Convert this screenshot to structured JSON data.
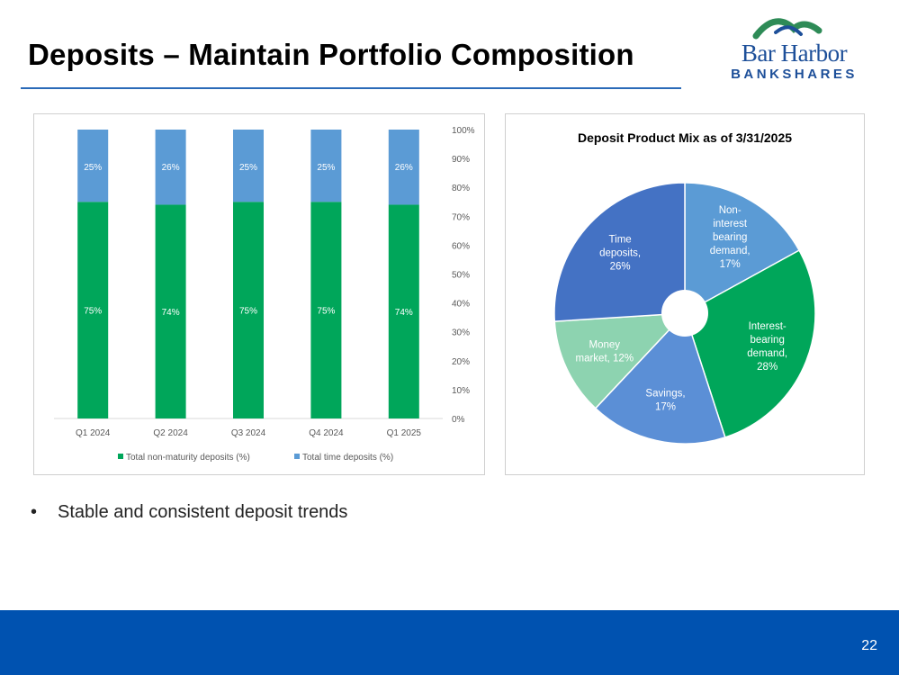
{
  "slide": {
    "title": "Deposits – Maintain Portfolio Composition",
    "bullet": "Stable and consistent deposit trends",
    "page_number": "22"
  },
  "logo": {
    "name": "Bar Harbor",
    "sub": "BANKSHARES"
  },
  "colors": {
    "title_rule": "#2a6ab8",
    "footer": "#0052b0",
    "green": "#00a65a",
    "lightblue": "#5b9bd5",
    "darkblue": "#4472c4",
    "mint": "#8dd3b0",
    "midblue": "#5b8fd6"
  },
  "chart_data": [
    {
      "type": "bar",
      "stacked": true,
      "categories": [
        "Q1 2024",
        "Q2 2024",
        "Q3 2024",
        "Q4 2024",
        "Q1 2025"
      ],
      "series": [
        {
          "name": "Total non-maturity deposits (%)",
          "values": [
            75,
            74,
            75,
            75,
            74
          ],
          "labels": [
            "75%",
            "74%",
            "75%",
            "75%",
            "74%"
          ],
          "color": "#00a65a"
        },
        {
          "name": "Total time deposits (%)",
          "values": [
            25,
            26,
            25,
            25,
            26
          ],
          "labels": [
            "25%",
            "26%",
            "25%",
            "25%",
            "26%"
          ],
          "color": "#5b9bd5"
        }
      ],
      "ylim": [
        0,
        100
      ],
      "yticks": [
        "0%",
        "10%",
        "20%",
        "30%",
        "40%",
        "50%",
        "60%",
        "70%",
        "80%",
        "90%",
        "100%"
      ],
      "y_axis_position": "right",
      "legend": "bottom"
    },
    {
      "type": "pie",
      "donut": true,
      "title": "Deposit Product Mix as of 3/31/2025",
      "slices": [
        {
          "name": "Non-interest bearing demand",
          "value": 17,
          "label_lines": [
            "Non-",
            "interest",
            "bearing",
            "demand,",
            "17%"
          ],
          "color": "#5b9bd5"
        },
        {
          "name": "Interest-bearing demand",
          "value": 28,
          "label_lines": [
            "Interest-",
            "bearing",
            "demand,",
            "28%"
          ],
          "color": "#00a65a"
        },
        {
          "name": "Savings",
          "value": 17,
          "label_lines": [
            "Savings,",
            "17%"
          ],
          "color": "#5b8fd6"
        },
        {
          "name": "Money market",
          "value": 12,
          "label_lines": [
            "Money",
            "market, 12%"
          ],
          "color": "#8dd3b0"
        },
        {
          "name": "Time deposits",
          "value": 26,
          "label_lines": [
            "Time",
            "deposits,",
            "26%"
          ],
          "color": "#4472c4"
        }
      ]
    }
  ]
}
